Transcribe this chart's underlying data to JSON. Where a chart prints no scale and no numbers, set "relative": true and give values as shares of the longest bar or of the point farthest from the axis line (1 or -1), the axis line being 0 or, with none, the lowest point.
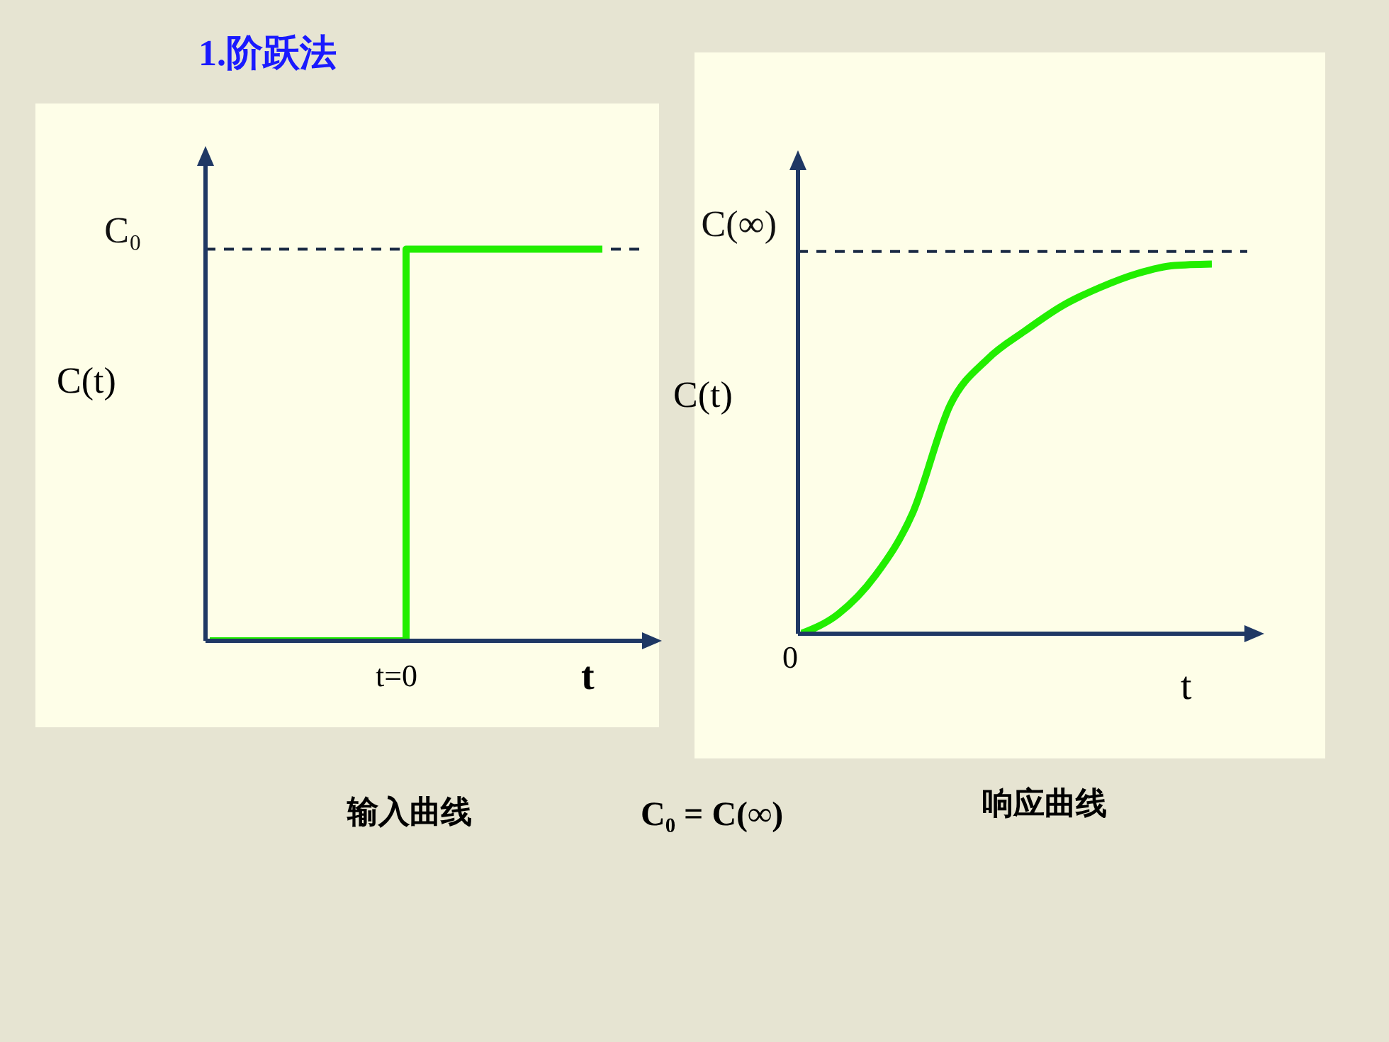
{
  "chart_data": [
    {
      "type": "step",
      "title": "1.阶跃法",
      "relative": true,
      "categories": [
        null,
        null,
        null,
        null,
        null,
        null,
        null,
        null,
        null
      ],
      "xlabel": "t",
      "ylabel": "C(t)",
      "series": [
        {
          "color": "#22ee00",
          "values": [
            0,
            0,
            0,
            0,
            1,
            1,
            1,
            1,
            1
          ]
        }
      ],
      "ref_lines": [
        {
          "axis": "y",
          "value": 1,
          "label": "C₀",
          "line_style": "dashed",
          "color": "#1a2a44"
        }
      ],
      "annotations": [
        "t=0",
        "输入曲线",
        "C₀ = C(∞)"
      ]
    },
    {
      "type": "line",
      "relative": true,
      "categories": [
        null,
        null,
        null,
        null,
        null,
        null,
        null,
        null,
        null,
        null,
        null,
        null
      ],
      "xlabel": "t",
      "ylabel": "C(t)",
      "series": [
        {
          "color": "#22ee00",
          "values": [
            0,
            0.053,
            0.158,
            0.328,
            0.619,
            0.743,
            0.819,
            0.887,
            0.936,
            0.974,
            0.996,
            1
          ]
        }
      ],
      "ref_lines": [
        {
          "axis": "y",
          "value": 1.034,
          "label": "C(∞)",
          "line_style": "dashed",
          "color": "#1a2a44"
        }
      ],
      "annotations": [
        "0",
        "响应曲线"
      ]
    }
  ]
}
